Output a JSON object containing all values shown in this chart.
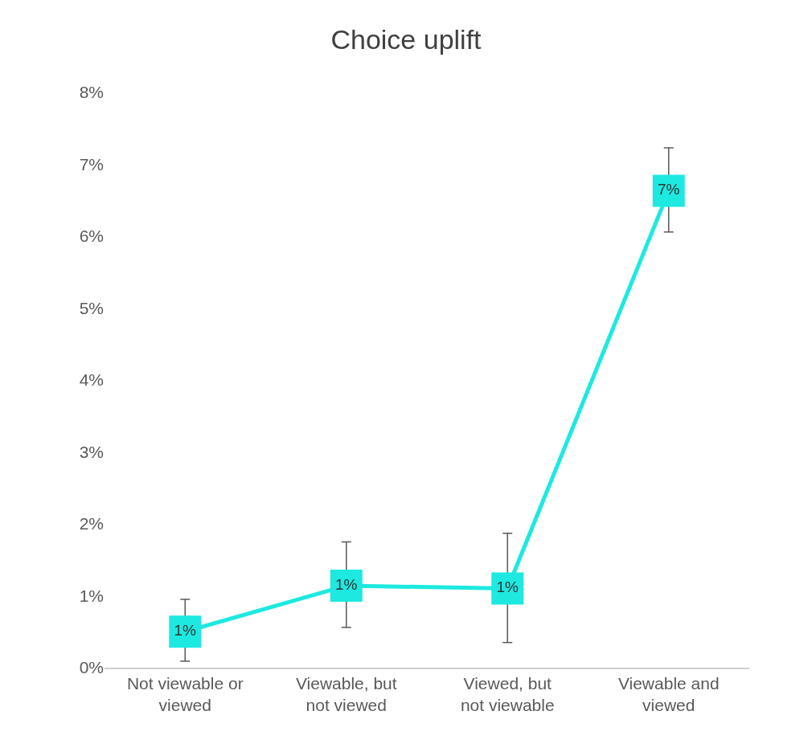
{
  "chart_data": {
    "type": "line",
    "title": "Choice uplift",
    "categories": [
      "Not viewable or viewed",
      "Viewable, but not viewed",
      "Viewed, but not viewable",
      "Viewable and viewed"
    ],
    "series": [
      {
        "color": "#1de9e0",
        "values": [
          0.5,
          1.14,
          1.1,
          6.63
        ],
        "errors": [
          [
            0.09,
            0.95
          ],
          [
            0.56,
            1.75
          ],
          [
            0.35,
            1.87
          ],
          [
            6.06,
            7.23
          ]
        ],
        "value_labels": [
          "1%",
          "1%",
          "1%",
          "7%"
        ]
      }
    ],
    "ylim": [
      0,
      8
    ],
    "yticks": [
      {
        "value": 0,
        "label": "0%"
      },
      {
        "value": 1,
        "label": "1%"
      },
      {
        "value": 2,
        "label": "2%"
      },
      {
        "value": 3,
        "label": "3%"
      },
      {
        "value": 4,
        "label": "4%"
      },
      {
        "value": 5,
        "label": "5%"
      },
      {
        "value": 6,
        "label": "6%"
      },
      {
        "value": 7,
        "label": "7%"
      },
      {
        "value": 8,
        "label": "8%"
      }
    ],
    "marker": "square",
    "line_style": "solid"
  }
}
